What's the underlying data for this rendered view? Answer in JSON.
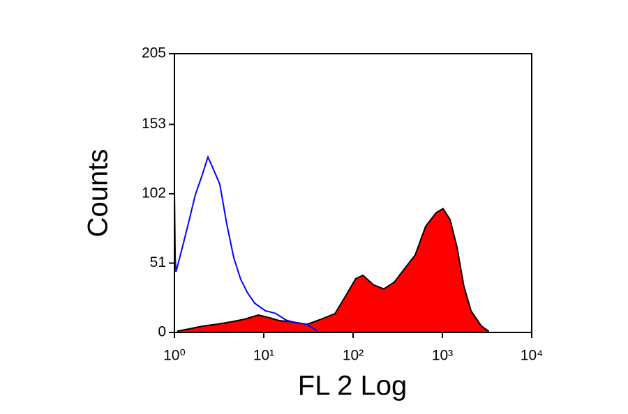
{
  "chart_data": {
    "type": "histogram_overlay",
    "xlabel": "FL 2 Log",
    "ylabel": "Counts",
    "xscale": "log",
    "xlim": [
      1,
      10000
    ],
    "xticks": [
      {
        "value": 1,
        "label": "10⁰"
      },
      {
        "value": 10,
        "label": "10¹"
      },
      {
        "value": 100,
        "label": "10²"
      },
      {
        "value": 1000,
        "label": "10³"
      },
      {
        "value": 10000,
        "label": "10⁴"
      }
    ],
    "ylim": [
      0,
      205
    ],
    "yticks": [
      0,
      51,
      102,
      153,
      205
    ],
    "series": [
      {
        "color": "#ff0000",
        "edgecolor": "#000000",
        "filled": true,
        "x": [
          1.09,
          1.43,
          2.05,
          2.94,
          4.22,
          6.04,
          8.66,
          11.3,
          14.9,
          21.3,
          30.5,
          43.7,
          62.6,
          82,
          107,
          129,
          169,
          221,
          289,
          378,
          496,
          649,
          851,
          1018,
          1219,
          1459,
          1740,
          2089,
          2738,
          3281
        ],
        "values": [
          1,
          2.5,
          4.6,
          6,
          7.7,
          9.7,
          12.8,
          11,
          8.7,
          7.7,
          6,
          9.7,
          13.8,
          26.6,
          39.5,
          42,
          35,
          32,
          37,
          47,
          57,
          78,
          88,
          91,
          83,
          62.5,
          34,
          16,
          4.6,
          1
        ]
      },
      {
        "color": "#0000ff",
        "filled": false,
        "x": [
          1.0,
          1.02,
          1.04,
          1.2,
          1.43,
          1.71,
          2.05,
          2.37,
          2.69,
          3.22,
          3.85,
          4.61,
          5.52,
          6.6,
          7.9,
          10.4,
          13.6,
          17.8,
          23.3,
          30.5,
          39.8
        ],
        "values": [
          105,
          55,
          44.6,
          60,
          80,
          101,
          116,
          129,
          121,
          109,
          80,
          55,
          39,
          29,
          21.5,
          16,
          14,
          9,
          7,
          6,
          1
        ]
      }
    ]
  }
}
